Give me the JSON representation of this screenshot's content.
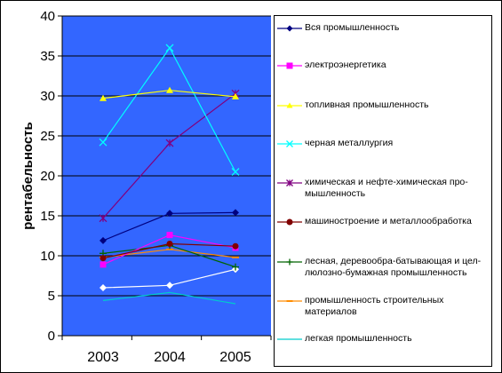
{
  "chart_data": {
    "type": "line",
    "title": "",
    "xlabel": "",
    "ylabel": "рентабельность",
    "ylim": [
      0,
      40
    ],
    "yticks": [
      0,
      5,
      10,
      15,
      20,
      25,
      30,
      35,
      40
    ],
    "categories": [
      "2003",
      "2004",
      "2005"
    ],
    "plot_background": "#3366FF",
    "grid": true,
    "legend_position": "right",
    "series": [
      {
        "name": "Вся промышленность",
        "values": [
          11.9,
          15.3,
          15.4
        ],
        "color": "#000080",
        "marker": "diamond"
      },
      {
        "name": "электроэнергетика",
        "values": [
          8.9,
          12.6,
          11.0
        ],
        "color": "#FF00FF",
        "marker": "square"
      },
      {
        "name": "топливная промышленность",
        "values": [
          29.7,
          30.7,
          29.9
        ],
        "color": "#FFFF00",
        "marker": "triangle"
      },
      {
        "name": "черная металлургия",
        "values": [
          24.2,
          36.0,
          20.5
        ],
        "color": "#00FFFF",
        "marker": "x"
      },
      {
        "name": "химическая и нефте-химическая про-мышленность",
        "values": [
          14.7,
          24.1,
          30.3
        ],
        "color": "#800080",
        "marker": "star"
      },
      {
        "name": "машиностроение и металлообработка",
        "values": [
          9.7,
          11.5,
          11.2
        ],
        "color": "#800000",
        "marker": "circle"
      },
      {
        "name": "лесная, деревообра-батывающая и цел-люлозно-бумажная промышленность",
        "values": [
          10.3,
          11.3,
          8.6
        ],
        "color": "#006400",
        "marker": "plus"
      },
      {
        "name": "промышленность строительных материалов",
        "values": [
          9.8,
          10.8,
          9.8
        ],
        "color": "#FF8C00",
        "marker": "dash"
      },
      {
        "name": "легкая промышленность",
        "values": [
          4.4,
          5.4,
          4.0
        ],
        "color": "#00CCCC",
        "marker": "none"
      },
      {
        "name": "",
        "values": [
          6.0,
          6.3,
          8.3
        ],
        "color": "#FFFFFF",
        "marker": "diamond"
      }
    ]
  }
}
